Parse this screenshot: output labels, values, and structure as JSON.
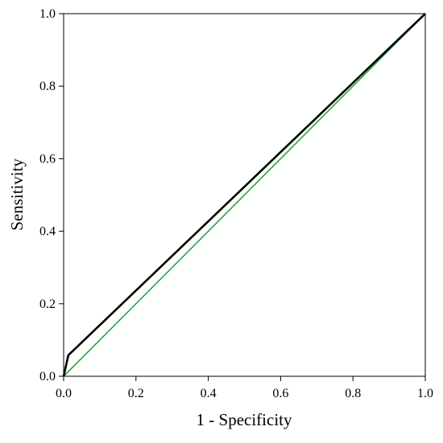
{
  "chart_data": {
    "type": "line",
    "title": "",
    "xlabel": "1 - Specificity",
    "ylabel": "Sensitivity",
    "xlim": [
      0.0,
      1.0
    ],
    "ylim": [
      0.0,
      1.0
    ],
    "x_ticks": [
      "0.0",
      "0.2",
      "0.4",
      "0.6",
      "0.8",
      "1.0"
    ],
    "y_ticks": [
      "0.0",
      "0.2",
      "0.4",
      "0.6",
      "0.8",
      "1.0"
    ],
    "grid": false,
    "legend": "none",
    "series": [
      {
        "x": [
          0.0,
          0.013,
          1.0
        ],
        "y": [
          0.0,
          0.058,
          1.0
        ],
        "color": "#000000"
      },
      {
        "x": [
          0.0,
          1.0
        ],
        "y": [
          0.0,
          1.0
        ],
        "color": "#1fa84a"
      }
    ]
  }
}
